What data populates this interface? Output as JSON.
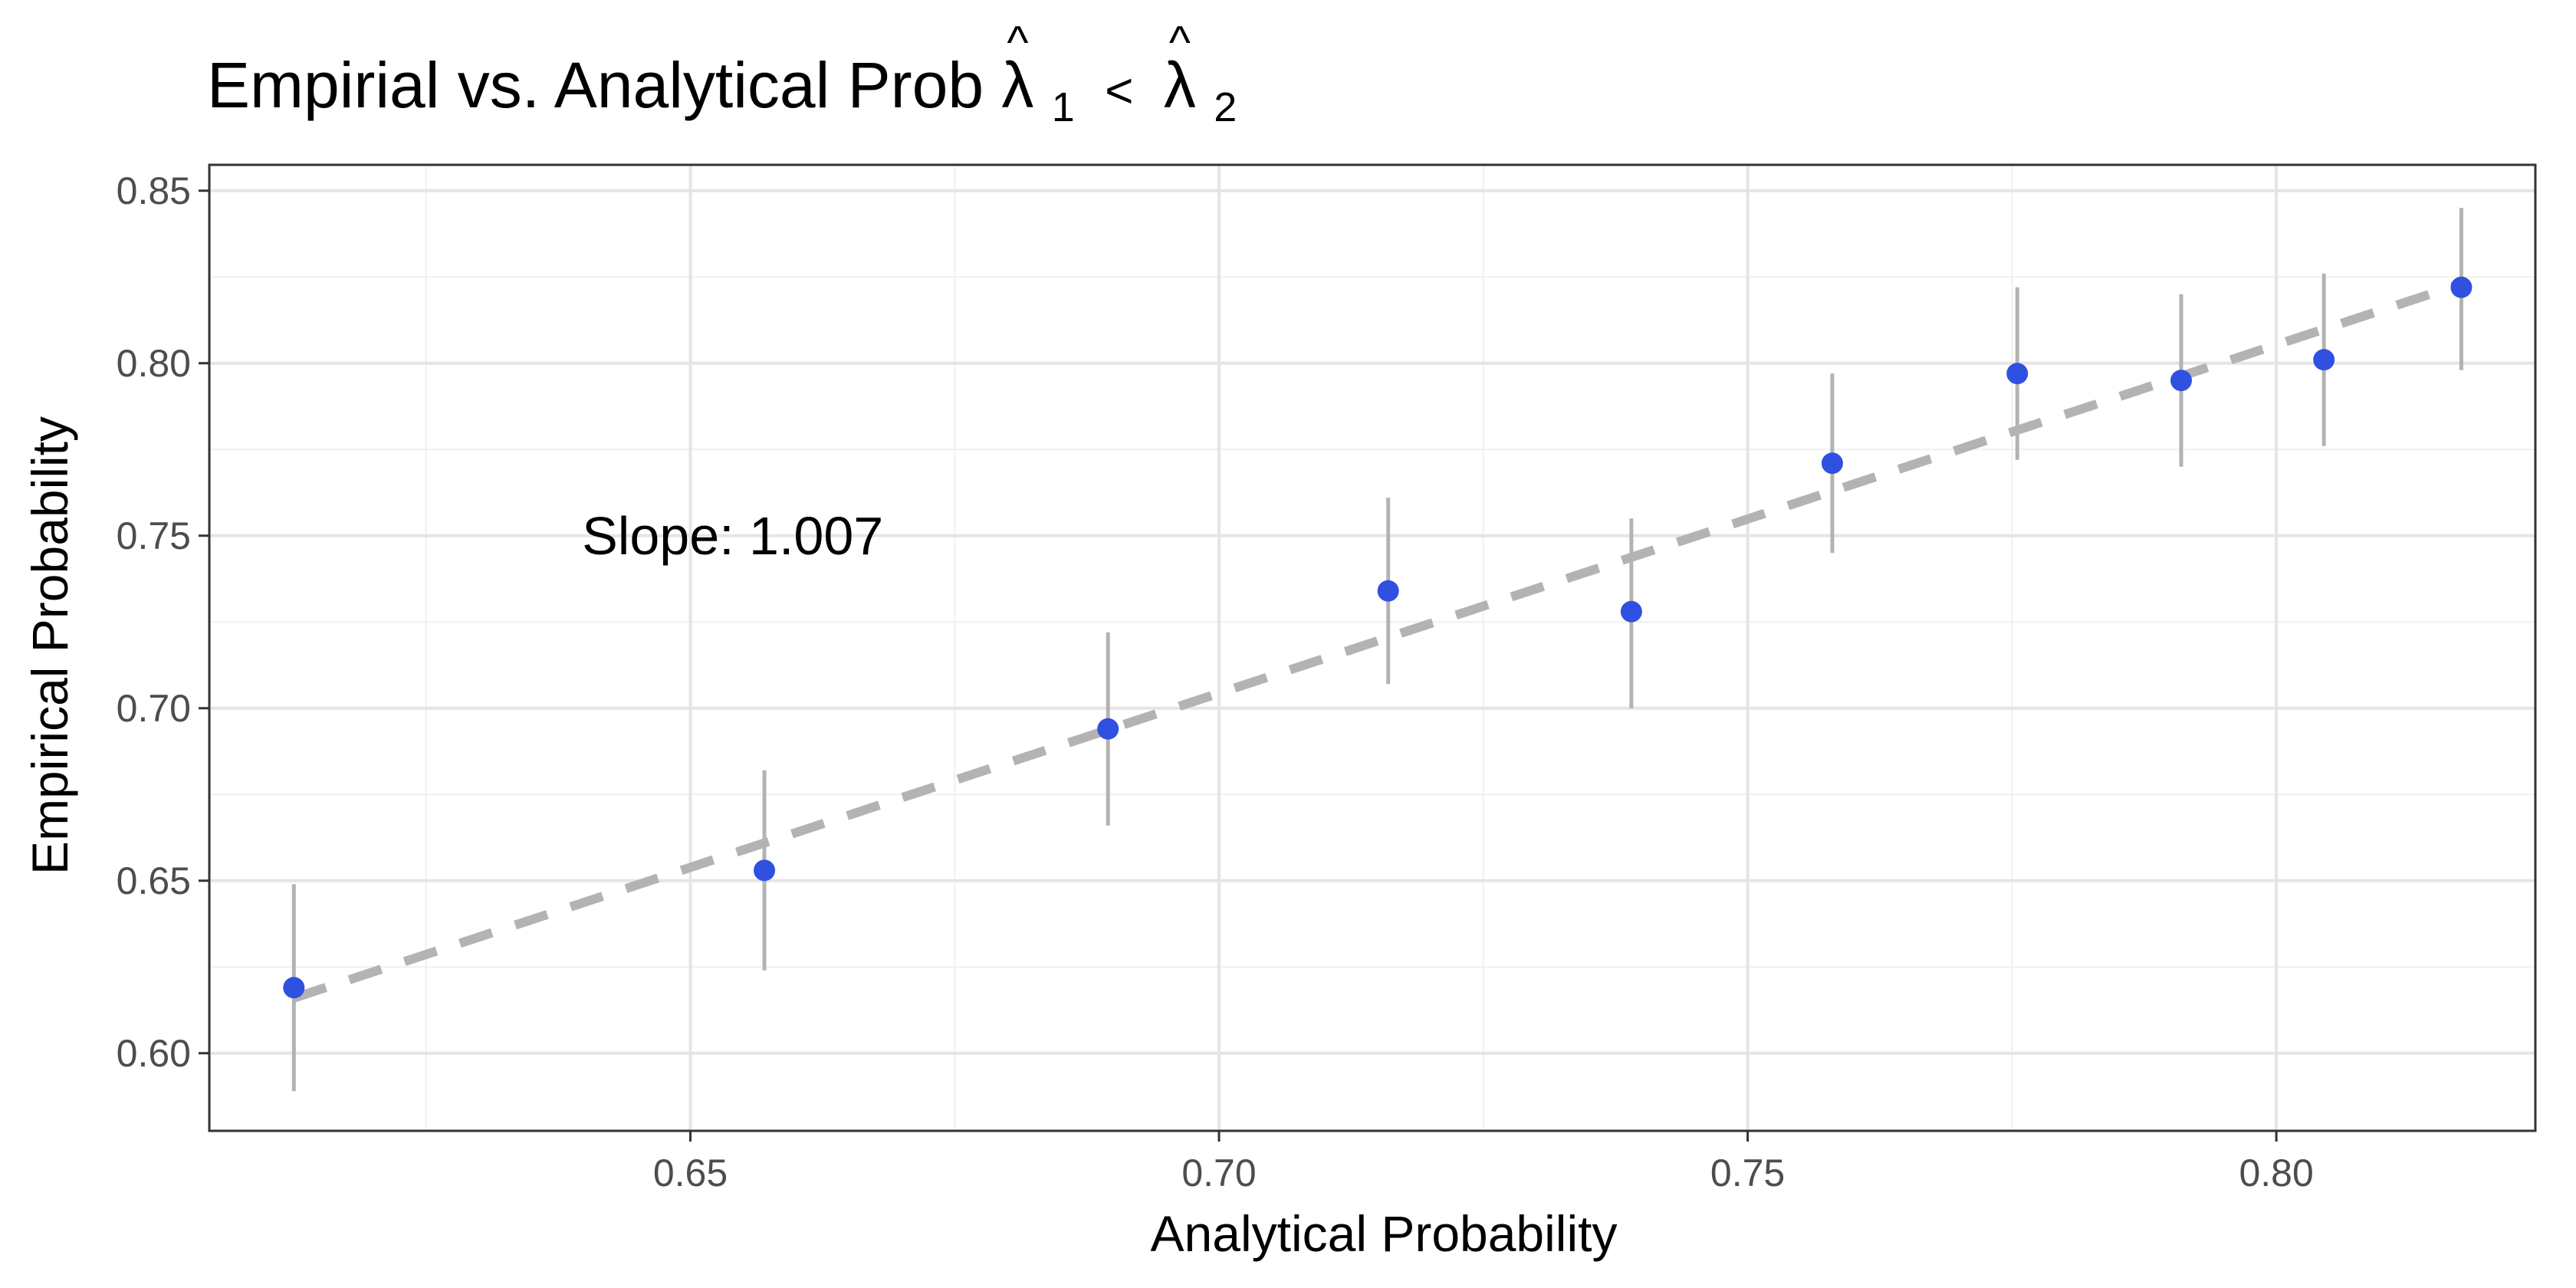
{
  "chart_data": {
    "type": "scatter",
    "title_parts": {
      "prefix": "Empirial vs. Analytical Prob ",
      "lambda": "λ",
      "hat": "^",
      "sub1": "1",
      "lt": "<",
      "sub2": "2"
    },
    "xlabel": "Analytical Probability",
    "ylabel": "Empirical Probability",
    "xlim": [
      0.6045,
      0.8245
    ],
    "ylim": [
      0.5775,
      0.8575
    ],
    "x_ticks": [
      0.65,
      0.7,
      0.75,
      0.8
    ],
    "x_tick_labels": [
      "0.65",
      "0.70",
      "0.75",
      "0.80"
    ],
    "y_ticks": [
      0.6,
      0.65,
      0.7,
      0.75,
      0.8,
      0.85
    ],
    "y_tick_labels": [
      "0.60",
      "0.65",
      "0.70",
      "0.75",
      "0.80",
      "0.85"
    ],
    "grid": true,
    "points": [
      {
        "x": 0.6125,
        "y": 0.619,
        "lo": 0.589,
        "hi": 0.649
      },
      {
        "x": 0.657,
        "y": 0.653,
        "lo": 0.624,
        "hi": 0.682
      },
      {
        "x": 0.6895,
        "y": 0.694,
        "lo": 0.666,
        "hi": 0.722
      },
      {
        "x": 0.716,
        "y": 0.734,
        "lo": 0.707,
        "hi": 0.761
      },
      {
        "x": 0.739,
        "y": 0.728,
        "lo": 0.7,
        "hi": 0.755
      },
      {
        "x": 0.758,
        "y": 0.771,
        "lo": 0.745,
        "hi": 0.797
      },
      {
        "x": 0.7755,
        "y": 0.797,
        "lo": 0.772,
        "hi": 0.822
      },
      {
        "x": 0.791,
        "y": 0.795,
        "lo": 0.77,
        "hi": 0.82
      },
      {
        "x": 0.8045,
        "y": 0.801,
        "lo": 0.776,
        "hi": 0.826
      },
      {
        "x": 0.8175,
        "y": 0.822,
        "lo": 0.798,
        "hi": 0.845
      }
    ],
    "fit_line": {
      "x": [
        0.6125,
        0.8175
      ],
      "y": [
        0.616,
        0.823
      ]
    },
    "annotation": {
      "text": "Slope: 1.007",
      "x": 0.654,
      "y": 0.75
    },
    "colors": {
      "point": "#3050e0",
      "errorbar": "#b3b3b3",
      "fit_line": "#b3b3b3",
      "grid_major": "#e5e5e5",
      "grid_minor": "#f0f0f0",
      "panel_border": "#333333"
    }
  }
}
